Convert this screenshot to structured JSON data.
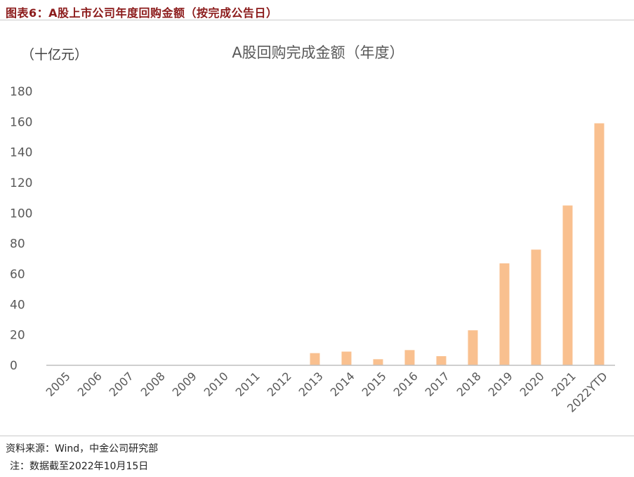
{
  "figure": {
    "title": "图表6：A股上市公司年度回购金额（按完成公告日）",
    "source": "资料来源：Wind，中金公司研究部",
    "note": "注：数据截至2022年10月15日"
  },
  "colors": {
    "bar": "#f9c08f",
    "axis": "#bfbfbf",
    "text": "#595959",
    "title": "#8b1a1a"
  },
  "chart_data": {
    "type": "bar",
    "title": "A股回购完成金额（年度）",
    "unit_label": "（十亿元）",
    "categories": [
      "2005",
      "2006",
      "2007",
      "2008",
      "2009",
      "2010",
      "2011",
      "2012",
      "2013",
      "2014",
      "2015",
      "2016",
      "2017",
      "2018",
      "2019",
      "2020",
      "2021",
      "2022YTD"
    ],
    "values": [
      0,
      0,
      0,
      0,
      0,
      0,
      0,
      0,
      8,
      9,
      4,
      10,
      6,
      23,
      67,
      76,
      105,
      159
    ],
    "ylim": [
      0,
      180
    ],
    "yticks": [
      0,
      20,
      40,
      60,
      80,
      100,
      120,
      140,
      160,
      180
    ],
    "grid": false,
    "legend": "none"
  }
}
